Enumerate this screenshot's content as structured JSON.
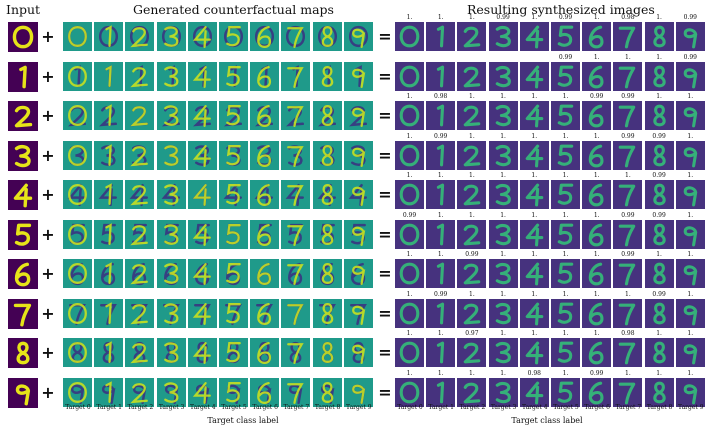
{
  "headers": {
    "input": "Input",
    "maps": "Generated counterfactual maps",
    "synth": "Resulting synthesized images"
  },
  "operators": {
    "plus": "+",
    "equals": "="
  },
  "input_digits": [
    "0",
    "1",
    "2",
    "3",
    "4",
    "5",
    "6",
    "7",
    "8",
    "9"
  ],
  "target_labels": [
    "Target 0",
    "Target 1",
    "Target 2",
    "Target 3",
    "Target 4",
    "Target 5",
    "Target 6",
    "Target 7",
    "Target 8",
    "Target 9"
  ],
  "axis_label": "Target class label",
  "confidences": [
    [
      "1.",
      "1.",
      "1.",
      "0.99",
      "1.",
      "0.99",
      "1.",
      "0.98",
      "1.",
      "0.99"
    ],
    [
      "",
      "",
      "",
      "",
      "",
      "0.99",
      "1.",
      "1.",
      "1.",
      "0.99"
    ],
    [
      "1.",
      "0.98",
      "1.",
      "1.",
      "1.",
      "1.",
      "0.99",
      "0.99",
      "1.",
      "1."
    ],
    [
      "1.",
      "0.99",
      "1.",
      "1.",
      "1.",
      "1.",
      "1.",
      "0.99",
      "0.99",
      "1."
    ],
    [
      "1.",
      "1.",
      "1.",
      "1.",
      "1.",
      "1.",
      "1.",
      "1.",
      "0.99",
      "1."
    ],
    [
      "0.99",
      "1.",
      "1.",
      "1.",
      "1.",
      "1.",
      "1.",
      "0.99",
      "0.99",
      "1."
    ],
    [
      "1.",
      "1.",
      "0.99",
      "1.",
      "1.",
      "1.",
      "1.",
      "0.99",
      "1.",
      "1."
    ],
    [
      "1.",
      "0.99",
      "1.",
      "1.",
      "1.",
      "1.",
      "1.",
      "1.",
      "0.99",
      "1."
    ],
    [
      "1.",
      "1.",
      "0.97",
      "1.",
      "1.",
      "1.",
      "1.",
      "0.98",
      "1.",
      "1."
    ],
    [
      "1.",
      "1.",
      "1.",
      "1.",
      "0.98",
      "1.",
      "0.99",
      "1.",
      "1.",
      "1."
    ]
  ],
  "colors": {
    "input_bg": "#440154",
    "input_fg": "#e6e419",
    "map_bg": "#1f9a8a",
    "map_pos": "#c8e020",
    "map_neg": "#3b2f80",
    "synth_bg": "#46327e",
    "synth_fg": "#35b779"
  }
}
